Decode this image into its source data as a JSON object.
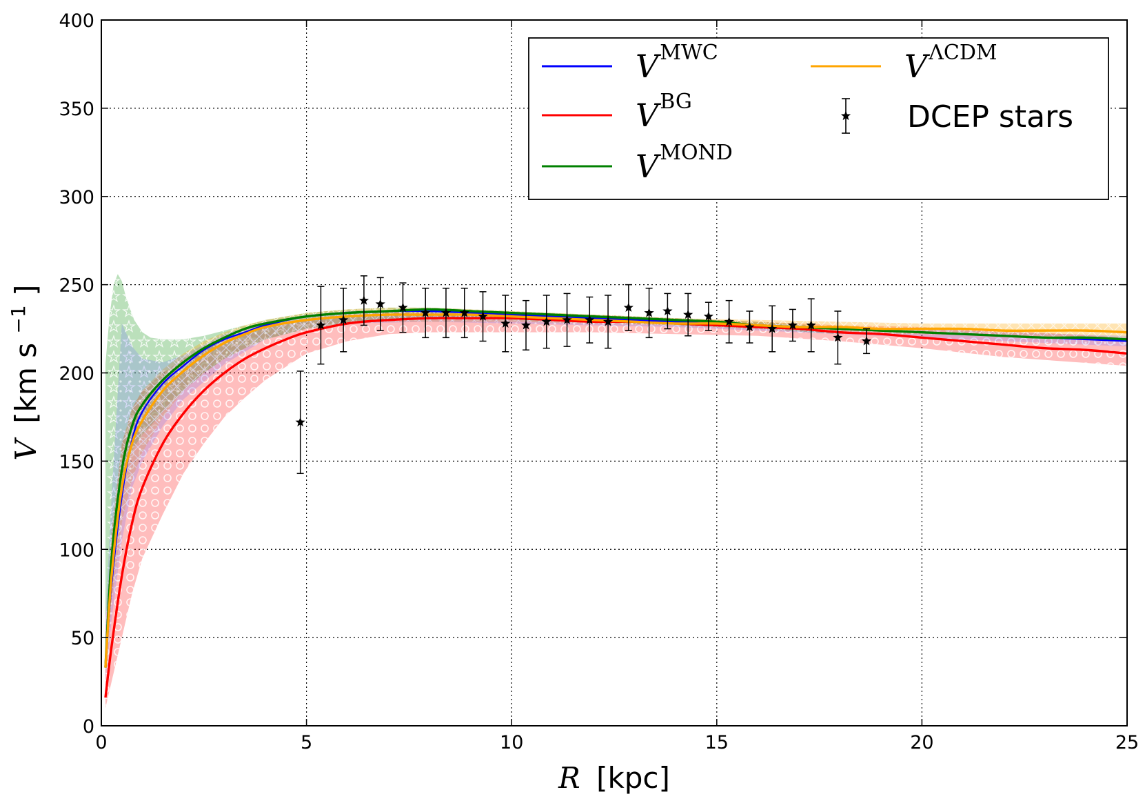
{
  "chart_data": {
    "type": "line",
    "title": "",
    "xlabel": {
      "symbol": "R",
      "unit": "[kpc]"
    },
    "ylabel": {
      "symbol": "V",
      "unit_main": "[km s",
      "unit_sup": "−1",
      "unit_close": "]"
    },
    "xlim": [
      0,
      25
    ],
    "ylim": [
      0,
      400
    ],
    "xticks": [
      0,
      5,
      10,
      15,
      20,
      25
    ],
    "yticks": [
      0,
      50,
      100,
      150,
      200,
      250,
      300,
      350,
      400
    ],
    "xtick_labels": [
      "0",
      "5",
      "10",
      "15",
      "20",
      "25"
    ],
    "ytick_labels": [
      "0",
      "50",
      "100",
      "150",
      "200",
      "250",
      "300",
      "350",
      "400"
    ],
    "grid": true,
    "legend": {
      "placement": "top-right",
      "entries": [
        {
          "key": "mwc",
          "base": "V",
          "sup": "MWC"
        },
        {
          "key": "bg",
          "base": "V",
          "sup": "BG"
        },
        {
          "key": "mond",
          "base": "V",
          "sup": "MOND"
        },
        {
          "key": "lcdm",
          "base": "V",
          "sup": "ΛCDM"
        },
        {
          "key": "dcep",
          "label": "DCEP stars"
        }
      ]
    },
    "series": [
      {
        "key": "mwc",
        "name": "V^MWC",
        "color": "#0000ff",
        "x": [
          0.1,
          0.25,
          0.5,
          0.75,
          1,
          1.5,
          2,
          2.5,
          3,
          3.5,
          4,
          5,
          6,
          7,
          8,
          9,
          10,
          11,
          12,
          13,
          14,
          15,
          16,
          17,
          18,
          19,
          20,
          21,
          22,
          23,
          24,
          25
        ],
        "y": [
          33,
          80,
          130,
          162,
          178,
          194,
          204,
          213,
          219,
          223,
          227,
          232,
          234,
          235,
          235,
          234,
          233,
          232,
          231,
          230,
          229,
          228,
          227,
          226,
          225,
          224,
          223,
          222,
          221,
          220,
          219,
          218
        ]
      },
      {
        "key": "bg",
        "name": "V^BG",
        "color": "#ff0000",
        "x": [
          0.1,
          0.25,
          0.5,
          0.75,
          1,
          1.5,
          2,
          2.5,
          3,
          3.5,
          4,
          4.5,
          5,
          6,
          7,
          8,
          9,
          10,
          11,
          12,
          13,
          14,
          15,
          16,
          17,
          18,
          19,
          20,
          21,
          22,
          23,
          24,
          25
        ],
        "y": [
          16,
          45,
          85,
          115,
          135,
          160,
          177,
          190,
          200,
          208,
          214,
          219,
          223,
          228,
          230,
          231,
          231,
          231,
          230,
          229,
          229,
          228,
          227,
          226,
          225,
          223,
          222,
          220,
          218,
          216,
          214,
          213,
          211
        ]
      },
      {
        "key": "mond",
        "name": "V^MOND",
        "color": "#008000",
        "x": [
          0.1,
          0.25,
          0.5,
          0.75,
          1,
          1.5,
          2,
          2.5,
          3,
          3.5,
          4,
          5,
          6,
          7,
          8,
          9,
          10,
          11,
          12,
          13,
          14,
          15,
          16,
          17,
          18,
          19,
          20,
          21,
          22,
          23,
          24,
          25
        ],
        "y": [
          33,
          95,
          145,
          170,
          182,
          196,
          206,
          214,
          220,
          225,
          228,
          232,
          234,
          235,
          236,
          235,
          234,
          233,
          232,
          231,
          230,
          229,
          227,
          226,
          225,
          224,
          223,
          222,
          221,
          220,
          220,
          219
        ]
      },
      {
        "key": "lcdm",
        "name": "V^ΛCDM",
        "color": "#ffa500",
        "x": [
          0.1,
          0.25,
          0.5,
          0.75,
          1,
          1.5,
          2,
          2.5,
          3,
          3.5,
          4,
          5,
          6,
          7,
          8,
          9,
          10,
          11,
          12,
          13,
          14,
          15,
          16,
          17,
          18,
          19,
          20,
          21,
          22,
          23,
          24,
          25
        ],
        "y": [
          33,
          85,
          135,
          160,
          173,
          190,
          201,
          210,
          217,
          222,
          226,
          230,
          232,
          233,
          233,
          233,
          232,
          231,
          230,
          229,
          228,
          228,
          227,
          226,
          226,
          225,
          225,
          225,
          224,
          224,
          224,
          223
        ]
      }
    ],
    "bands": [
      {
        "key": "bg_band",
        "color": "#ff0000",
        "opacity": 0.26,
        "x": [
          0.1,
          0.25,
          0.5,
          0.75,
          1,
          1.5,
          2,
          2.5,
          3,
          3.5,
          4,
          5,
          6,
          7,
          8,
          9,
          10,
          12,
          14,
          16,
          18,
          20,
          22,
          25
        ],
        "upper": [
          55,
          110,
          160,
          180,
          190,
          200,
          208,
          214,
          219,
          223,
          226,
          230,
          233,
          235,
          235,
          235,
          234,
          233,
          231,
          229,
          227,
          226,
          224,
          220
        ],
        "lower": [
          10,
          25,
          50,
          75,
          95,
          120,
          143,
          160,
          175,
          186,
          196,
          211,
          218,
          222,
          223,
          223,
          223,
          223,
          222,
          221,
          218,
          214,
          209,
          204
        ]
      },
      {
        "key": "mond_band",
        "color": "#2ca02c",
        "opacity": 0.32,
        "x": [
          0.1,
          0.2,
          0.3,
          0.4,
          0.5,
          0.6,
          0.8,
          1,
          1.2,
          1.5,
          2,
          2.5,
          3,
          3.5,
          4,
          4.5,
          5,
          6,
          7,
          8,
          9,
          10,
          12,
          14,
          16,
          18
        ],
        "upper": [
          205,
          232,
          250,
          256,
          252,
          243,
          230,
          223,
          220,
          219,
          219,
          221,
          224,
          227,
          230,
          232,
          234,
          236,
          237,
          237,
          236,
          235,
          233,
          231,
          229,
          226
        ],
        "lower": [
          60,
          80,
          110,
          130,
          140,
          148,
          158,
          165,
          170,
          178,
          190,
          200,
          208,
          214,
          219,
          222,
          225,
          228,
          230,
          231,
          231,
          230,
          229,
          227,
          225,
          222
        ]
      },
      {
        "key": "lcdm_band",
        "color": "#ffa500",
        "opacity": 0.3,
        "x": [
          0.1,
          0.25,
          0.5,
          0.75,
          1,
          1.5,
          2,
          2.5,
          3,
          3.5,
          4,
          5,
          6,
          7,
          8,
          9,
          10,
          12,
          14,
          16,
          18,
          20,
          22,
          25
        ],
        "upper": [
          45,
          110,
          160,
          180,
          190,
          202,
          211,
          218,
          223,
          227,
          230,
          234,
          236,
          237,
          237,
          236,
          235,
          233,
          231,
          230,
          229,
          228,
          228,
          228
        ],
        "lower": [
          28,
          70,
          115,
          140,
          155,
          175,
          190,
          200,
          208,
          214,
          219,
          225,
          228,
          229,
          229,
          229,
          229,
          228,
          227,
          225,
          223,
          222,
          221,
          219
        ]
      },
      {
        "key": "mwc_band",
        "color": "#6a6aff",
        "opacity": 0.22,
        "x": [
          0.1,
          0.25,
          0.5,
          0.75,
          1,
          1.5,
          2,
          3,
          4,
          5,
          6,
          8,
          10,
          12,
          14,
          16,
          18,
          20,
          22,
          25
        ],
        "upper": [
          60,
          130,
          228,
          215,
          208,
          206,
          210,
          222,
          229,
          233,
          235,
          236,
          234,
          232,
          230,
          228,
          226,
          225,
          223,
          221
        ],
        "lower": [
          25,
          60,
          105,
          135,
          150,
          170,
          185,
          205,
          219,
          225,
          228,
          229,
          228,
          227,
          226,
          224,
          222,
          220,
          218,
          215
        ]
      }
    ],
    "points": {
      "key": "dcep",
      "name": "DCEP stars",
      "color": "#000000",
      "x": [
        4.85,
        5.35,
        5.9,
        6.4,
        6.8,
        7.35,
        7.9,
        8.4,
        8.85,
        9.3,
        9.85,
        10.35,
        10.85,
        11.35,
        11.9,
        12.35,
        12.85,
        13.35,
        13.8,
        14.3,
        14.8,
        15.3,
        15.8,
        16.35,
        16.85,
        17.3,
        17.95,
        18.65
      ],
      "y": [
        172,
        227,
        230,
        241,
        239,
        237,
        234,
        234,
        234,
        232,
        228,
        227,
        229,
        230,
        230,
        229,
        237,
        234,
        235,
        233,
        232,
        229,
        226,
        225,
        227,
        227,
        220,
        218
      ],
      "err": [
        29,
        22,
        18,
        14,
        15,
        14,
        14,
        14,
        14,
        14,
        16,
        14,
        15,
        15,
        13,
        15,
        13,
        14,
        10,
        12,
        8,
        12,
        9,
        13,
        9,
        15,
        15,
        7
      ]
    }
  }
}
